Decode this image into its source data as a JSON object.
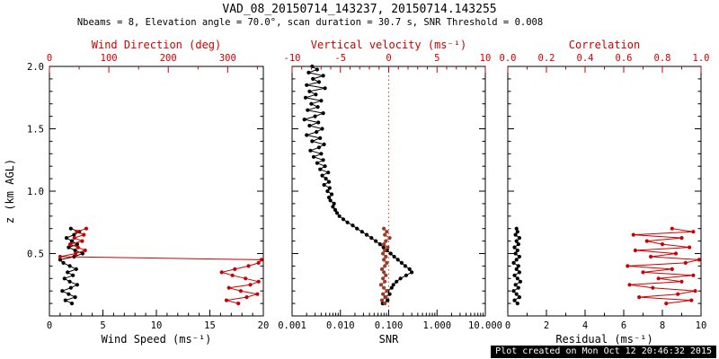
{
  "chart_data": {
    "type": "line",
    "title": "VAD_08_20150714_143237, 20150714.143255",
    "subtitle": "Nbeams = 8, Elevation angle = 70.0°, scan duration = 30.7 s, SNR Threshold = 0.008",
    "footer": "Plot created on Mon Oct 12 20:46:32 2015",
    "ylabel": "z (km AGL)",
    "ylim": [
      0,
      2.0
    ],
    "yticks": {
      "values": [
        0.5,
        1.0,
        1.5,
        2.0
      ],
      "labels": [
        "0.5",
        "1.0",
        "1.5",
        "2.0"
      ],
      "minor_step": 0.1
    },
    "colors": {
      "axis_black": "#000000",
      "axis_red": "#cc0000",
      "vv_dots": "#9e3a28",
      "ref_line": "#cc4433"
    },
    "panels": [
      {
        "name": "wind",
        "show_y_labels": true,
        "bottom_axis": {
          "label": "Wind Speed (ms⁻¹)",
          "scale": "linear",
          "min": 0,
          "max": 20,
          "tick_values": [
            0,
            5,
            10,
            15,
            20
          ],
          "tick_labels": [
            "0",
            "5",
            "10",
            "15",
            "20"
          ],
          "minor_divs": 5
        },
        "top_axis": {
          "label": "Wind Direction (deg)",
          "scale": "linear",
          "min": 0,
          "max": 360,
          "tick_values": [
            0,
            100,
            200,
            300
          ],
          "tick_labels": [
            "0",
            "100",
            "200",
            "300"
          ],
          "minor_divs": 2,
          "color": "#cc0000"
        },
        "series": [
          {
            "name": "wind-speed",
            "axis": "bottom",
            "color": "#000000",
            "z": [
              0.1,
              0.125,
              0.15,
              0.175,
              0.2,
              0.225,
              0.25,
              0.275,
              0.3,
              0.325,
              0.35,
              0.375,
              0.4,
              0.425,
              0.45,
              0.475,
              0.5,
              0.525,
              0.55,
              0.575,
              0.6,
              0.625,
              0.65,
              0.675,
              0.7
            ],
            "v": [
              2.1,
              1.5,
              2.4,
              1.8,
              1.2,
              2.0,
              2.6,
              1.9,
              1.4,
              2.2,
              1.7,
              2.5,
              1.9,
              1.3,
              1.0,
              2.3,
              3.1,
              2.4,
              1.8,
              2.6,
              2.1,
              1.6,
              2.3,
              2.8,
              2.0
            ]
          },
          {
            "name": "wind-direction",
            "axis": "top",
            "color": "#cc0000",
            "z": [
              0.1,
              0.125,
              0.15,
              0.175,
              0.2,
              0.225,
              0.25,
              0.275,
              0.3,
              0.325,
              0.35,
              0.375,
              0.4,
              0.425,
              0.45,
              0.475,
              0.5,
              0.525,
              0.55,
              0.575,
              0.6,
              0.625,
              0.65,
              0.675,
              0.7
            ],
            "v": [
              318,
              298,
              332,
              350,
              322,
              302,
              338,
              352,
              330,
              308,
              290,
              312,
              335,
              352,
              357,
              18,
              44,
              60,
              48,
              35,
              55,
              42,
              58,
              46,
              62
            ]
          }
        ]
      },
      {
        "name": "snr",
        "show_y_labels": false,
        "bottom_axis": {
          "label": "SNR",
          "scale": "log",
          "min": 0.001,
          "max": 10.0,
          "tick_values": [
            0.001,
            0.01,
            0.1,
            1.0,
            10.0
          ],
          "tick_labels": [
            "0.001",
            "0.010",
            "0.100",
            "1.000",
            "10.000"
          ]
        },
        "top_axis": {
          "label": "Vertical velocity (ms⁻¹)",
          "scale": "linear",
          "min": -10,
          "max": 10,
          "tick_values": [
            -10,
            -5,
            0,
            5,
            10
          ],
          "tick_labels": [
            "-10",
            "-5",
            "0",
            "5",
            "10"
          ],
          "minor_divs": 5,
          "color": "#cc0000"
        },
        "ref_line": {
          "value": 0,
          "color": "#cc4433"
        },
        "series": [
          {
            "name": "snr",
            "axis": "bottom",
            "color": "#000000",
            "z": [
              0.1,
              0.125,
              0.15,
              0.175,
              0.2,
              0.225,
              0.25,
              0.275,
              0.3,
              0.325,
              0.35,
              0.375,
              0.4,
              0.425,
              0.45,
              0.475,
              0.5,
              0.525,
              0.55,
              0.575,
              0.6,
              0.625,
              0.65,
              0.675,
              0.7,
              0.725,
              0.75,
              0.775,
              0.8,
              0.825,
              0.85,
              0.875,
              0.9,
              0.925,
              0.95,
              0.975,
              1.0,
              1.025,
              1.05,
              1.075,
              1.1,
              1.125,
              1.15,
              1.175,
              1.2,
              1.225,
              1.25,
              1.275,
              1.3,
              1.325,
              1.35,
              1.375,
              1.4,
              1.425,
              1.45,
              1.475,
              1.5,
              1.525,
              1.55,
              1.575,
              1.6,
              1.625,
              1.65,
              1.675,
              1.7,
              1.725,
              1.75,
              1.775,
              1.8,
              1.825,
              1.85,
              1.875,
              1.9,
              1.925,
              1.95,
              1.975,
              2.0
            ],
            "v": [
              0.075,
              0.095,
              0.085,
              0.105,
              0.095,
              0.115,
              0.125,
              0.145,
              0.175,
              0.23,
              0.3,
              0.27,
              0.22,
              0.185,
              0.155,
              0.13,
              0.11,
              0.092,
              0.078,
              0.066,
              0.054,
              0.044,
              0.035,
              0.028,
              0.022,
              0.018,
              0.014,
              0.0115,
              0.0095,
              0.0085,
              0.0078,
              0.007,
              0.0074,
              0.0062,
              0.0058,
              0.0066,
              0.0054,
              0.006,
              0.0046,
              0.0058,
              0.005,
              0.0042,
              0.0056,
              0.0038,
              0.0048,
              0.0033,
              0.0044,
              0.0028,
              0.004,
              0.0024,
              0.0036,
              0.0046,
              0.0026,
              0.0038,
              0.002,
              0.0032,
              0.0042,
              0.0023,
              0.0035,
              0.0018,
              0.003,
              0.0044,
              0.0021,
              0.0034,
              0.0025,
              0.004,
              0.0019,
              0.0031,
              0.0023,
              0.0048,
              0.002,
              0.0036,
              0.0027,
              0.0044,
              0.0022,
              0.0033,
              0.0026
            ]
          },
          {
            "name": "vertical-velocity",
            "axis": "top",
            "color": "#9e3a28",
            "z": [
              0.1,
              0.125,
              0.15,
              0.175,
              0.2,
              0.225,
              0.25,
              0.275,
              0.3,
              0.325,
              0.35,
              0.375,
              0.4,
              0.425,
              0.45,
              0.475,
              0.5,
              0.525,
              0.55,
              0.575,
              0.6,
              0.625,
              0.65,
              0.675,
              0.7
            ],
            "v": [
              -0.4,
              -0.7,
              -0.3,
              -0.6,
              -0.2,
              -0.5,
              -0.8,
              -0.4,
              -0.6,
              -0.3,
              -0.5,
              -0.7,
              -0.4,
              -0.2,
              -0.5,
              -0.3,
              -0.6,
              -0.4,
              -0.1,
              -0.5,
              -0.3,
              0.1,
              -0.4,
              -0.2,
              -0.5
            ]
          }
        ]
      },
      {
        "name": "residual",
        "show_y_labels": false,
        "bottom_axis": {
          "label": "Residual (ms⁻¹)",
          "scale": "linear",
          "min": 0,
          "max": 10,
          "tick_values": [
            0,
            2,
            4,
            6,
            8,
            10
          ],
          "tick_labels": [
            "0",
            "2",
            "4",
            "6",
            "8",
            "10"
          ],
          "minor_divs": 2
        },
        "top_axis": {
          "label": "Correlation",
          "scale": "linear",
          "min": 0.0,
          "max": 1.0,
          "tick_values": [
            0.0,
            0.2,
            0.4,
            0.6,
            0.8,
            1.0
          ],
          "tick_labels": [
            "0.0",
            "0.2",
            "0.4",
            "0.6",
            "0.8",
            "1.0"
          ],
          "minor_divs": 2,
          "color": "#cc0000"
        },
        "series": [
          {
            "name": "residual",
            "axis": "bottom",
            "color": "#000000",
            "z": [
              0.1,
              0.125,
              0.15,
              0.175,
              0.2,
              0.225,
              0.25,
              0.275,
              0.3,
              0.325,
              0.35,
              0.375,
              0.4,
              0.425,
              0.45,
              0.475,
              0.5,
              0.525,
              0.55,
              0.575,
              0.6,
              0.625,
              0.65,
              0.675,
              0.7
            ],
            "v": [
              0.5,
              0.35,
              0.6,
              0.45,
              0.3,
              0.55,
              0.4,
              0.65,
              0.5,
              0.35,
              0.6,
              0.45,
              0.55,
              0.3,
              0.45,
              0.6,
              0.4,
              0.5,
              0.35,
              0.55,
              0.45,
              0.6,
              0.4,
              0.5,
              0.45
            ]
          },
          {
            "name": "correlation",
            "axis": "top",
            "color": "#cc0000",
            "z": [
              0.1,
              0.125,
              0.15,
              0.175,
              0.2,
              0.225,
              0.25,
              0.275,
              0.3,
              0.325,
              0.35,
              0.375,
              0.4,
              0.425,
              0.45,
              0.475,
              0.5,
              0.525,
              0.55,
              0.575,
              0.6,
              0.625,
              0.65,
              0.675,
              0.7
            ],
            "v": [
              0.82,
              0.95,
              0.68,
              0.88,
              0.97,
              0.75,
              0.63,
              0.9,
              0.78,
              0.96,
              0.7,
              0.85,
              0.62,
              0.92,
              0.99,
              0.74,
              0.87,
              0.66,
              0.94,
              0.8,
              0.72,
              0.9,
              0.65,
              0.96,
              0.85
            ]
          }
        ]
      }
    ]
  }
}
